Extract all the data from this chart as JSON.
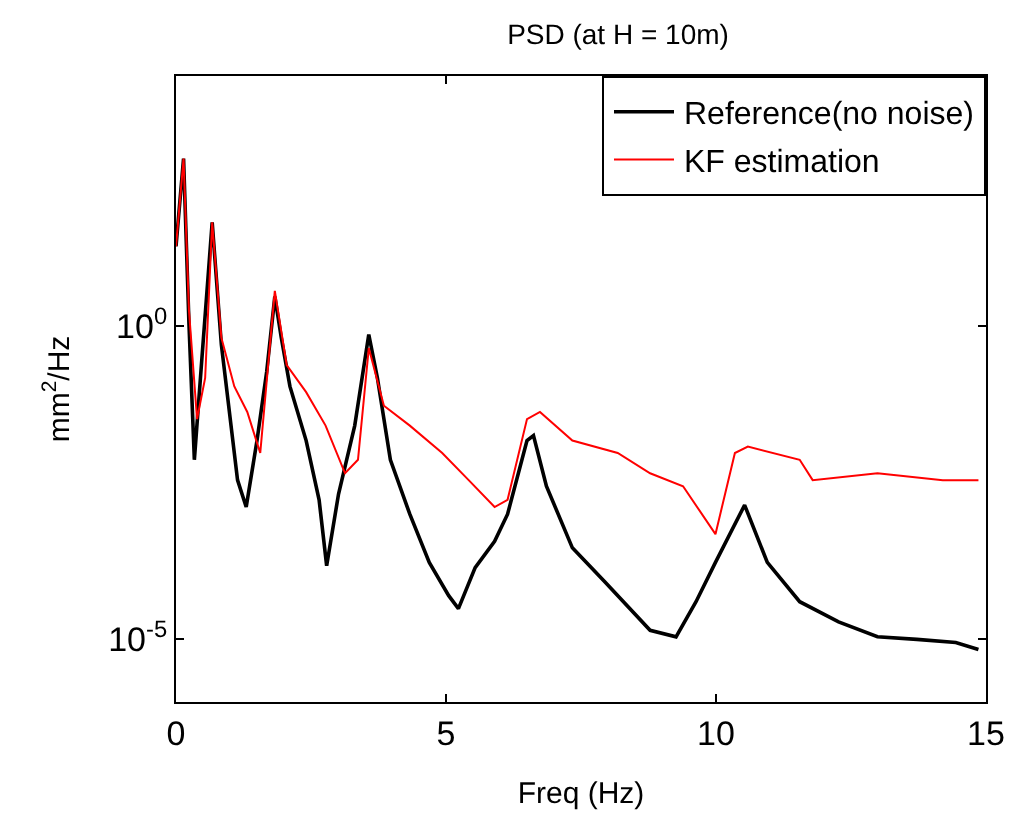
{
  "chart_data": {
    "type": "line",
    "title": "PSD (at H = 10m)",
    "xlabel": "Freq (Hz)",
    "ylabel": "mm$^{2}$/Hz",
    "log": "y",
    "xlim": [
      0,
      15
    ],
    "xticks": [
      0,
      5,
      10,
      15
    ],
    "ylim": [
      1e-06,
      10000
    ],
    "yticks": [
      {
        "value": 1,
        "label": "10$^{0}$"
      },
      {
        "value": 1e-05,
        "label": "10$^{-5}$"
      }
    ],
    "legend": "top right",
    "marker": "none",
    "line_style": "solid",
    "series": [
      {
        "name": "Reference(no noise)",
        "color": "#000000",
        "x": [
          0,
          0.14,
          0.24,
          0.34,
          0.48,
          0.67,
          0.84,
          1.14,
          1.3,
          1.5,
          1.68,
          1.83,
          1.95,
          2.11,
          2.41,
          2.65,
          2.79,
          3.01,
          3.31,
          3.57,
          3.73,
          3.97,
          4.33,
          4.69,
          5.05,
          5.23,
          5.54,
          5.9,
          6.14,
          6.5,
          6.62,
          6.86,
          7.34,
          7.94,
          8.78,
          9.26,
          9.63,
          9.99,
          10.53,
          10.95,
          11.55,
          12.27,
          12.99,
          13.72,
          14.44,
          14.86
        ],
        "values": [
          19,
          480,
          1.1,
          0.0074,
          0.31,
          46,
          0.51,
          0.0035,
          0.0013,
          0.015,
          0.19,
          3.0,
          0.66,
          0.11,
          0.015,
          0.0017,
          0.00015,
          0.0021,
          0.026,
          0.74,
          0.15,
          0.0074,
          0.001,
          0.00017,
          5e-05,
          3.1e-05,
          0.00014,
          0.00037,
          0.001,
          0.015,
          0.018,
          0.0028,
          0.00029,
          8.3e-05,
          1.4e-05,
          1.1e-05,
          4e-05,
          0.00017,
          0.0014,
          0.00017,
          4e-05,
          1.9e-05,
          1.1e-05,
          1e-05,
          8.9e-06,
          6.9e-06
        ]
      },
      {
        "name": "KF estimation",
        "color": "#ff0000",
        "x": [
          0,
          0.14,
          0.24,
          0.39,
          0.54,
          0.67,
          0.84,
          1.08,
          1.32,
          1.56,
          1.83,
          2.05,
          2.41,
          2.77,
          3.13,
          3.37,
          3.57,
          3.85,
          4.33,
          4.93,
          5.42,
          5.9,
          6.14,
          6.5,
          6.74,
          7.34,
          8.18,
          8.78,
          9.39,
          9.99,
          10.35,
          10.59,
          11.55,
          11.79,
          12.99,
          14.2,
          14.86
        ],
        "values": [
          19,
          480,
          1.8,
          0.033,
          0.15,
          46,
          0.66,
          0.11,
          0.043,
          0.0095,
          3.7,
          0.24,
          0.089,
          0.026,
          0.0045,
          0.0074,
          0.45,
          0.054,
          0.026,
          0.0095,
          0.0035,
          0.0013,
          0.0017,
          0.033,
          0.043,
          0.015,
          0.0095,
          0.0045,
          0.0028,
          0.00048,
          0.0095,
          0.012,
          0.0074,
          0.0035,
          0.0045,
          0.0035,
          0.0035
        ]
      }
    ]
  }
}
